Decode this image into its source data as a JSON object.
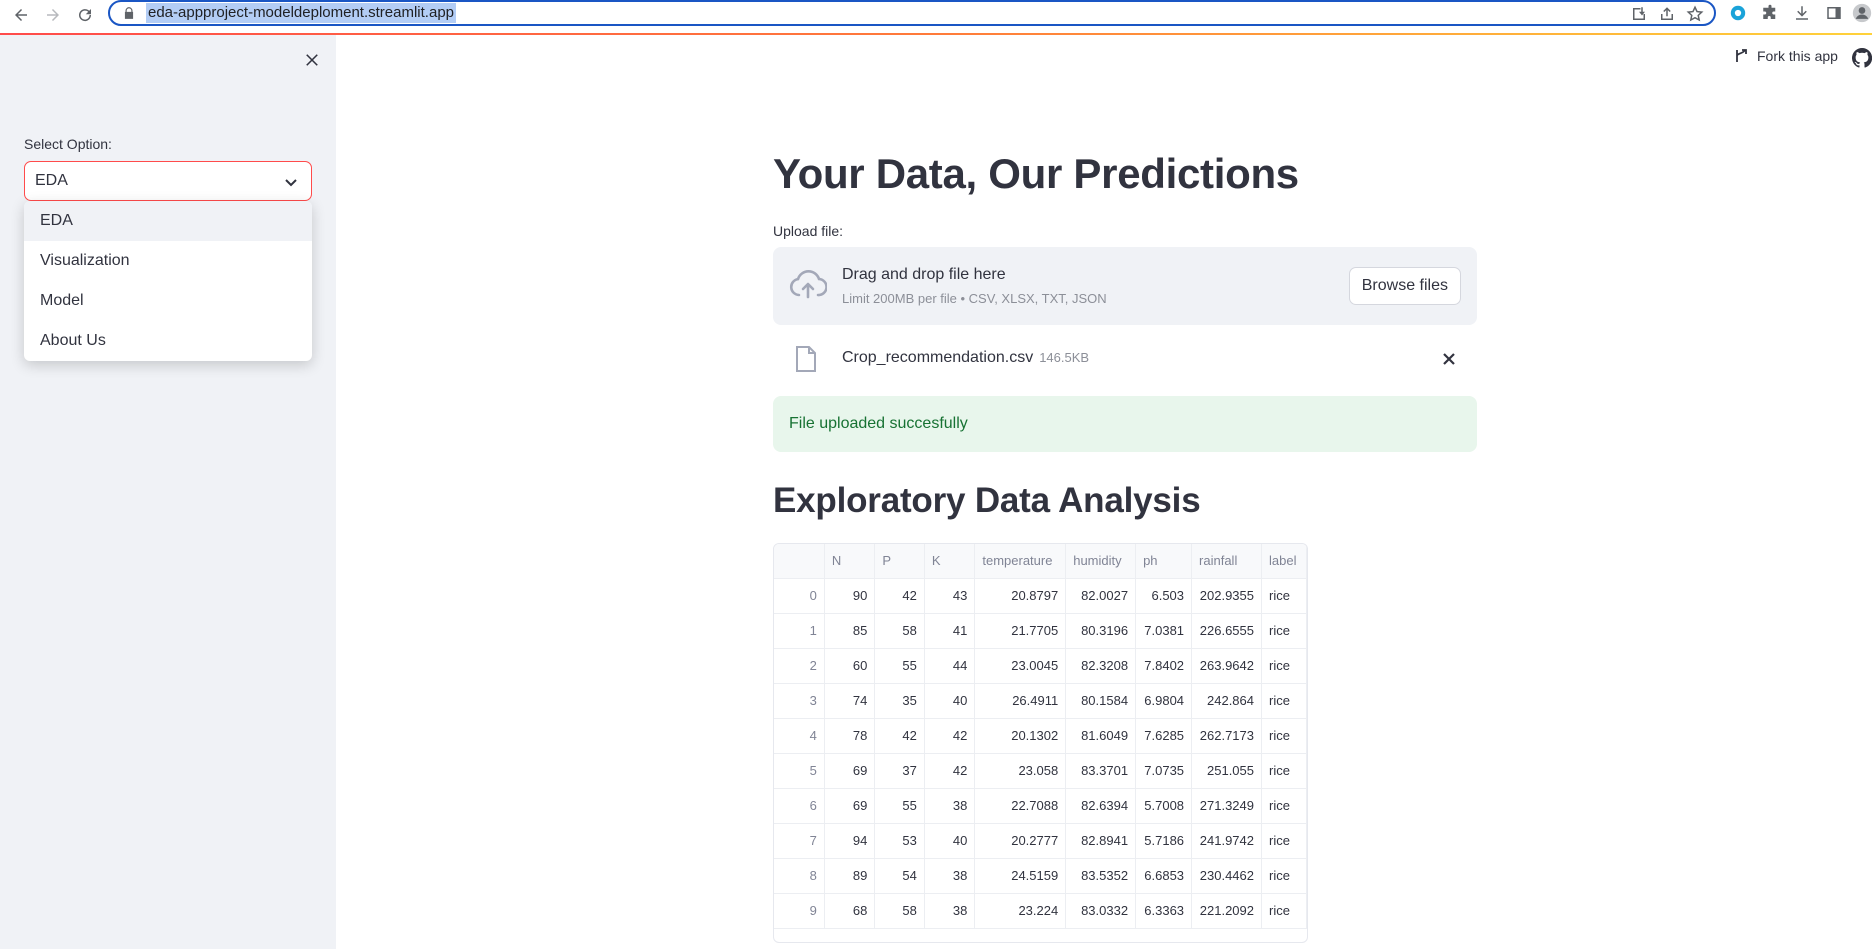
{
  "browser": {
    "url": "eda-appproject-modeldeploment.streamlit.app"
  },
  "sidebar": {
    "select_label": "Select Option:",
    "selected_value": "EDA",
    "options": [
      "EDA",
      "Visualization",
      "Model",
      "About Us"
    ]
  },
  "header": {
    "fork_label": "Fork this app"
  },
  "main": {
    "title": "Your Data, Our Predictions",
    "upload_label": "Upload file:",
    "dropzone_title": "Drag and drop file here",
    "dropzone_limit": "Limit 200MB per file • CSV, XLSX, TXT, JSON",
    "browse_label": "Browse files",
    "file_name": "Crop_recommendation.csv",
    "file_size": "146.5KB",
    "success_message": "File uploaded succesfully",
    "section_title": "Exploratory Data Analysis"
  },
  "table": {
    "columns": [
      "",
      "N",
      "P",
      "K",
      "temperature",
      "humidity",
      "ph",
      "rainfall",
      "label"
    ],
    "rows": [
      [
        "0",
        "90",
        "42",
        "43",
        "20.8797",
        "82.0027",
        "6.503",
        "202.9355",
        "rice"
      ],
      [
        "1",
        "85",
        "58",
        "41",
        "21.7705",
        "80.3196",
        "7.0381",
        "226.6555",
        "rice"
      ],
      [
        "2",
        "60",
        "55",
        "44",
        "23.0045",
        "82.3208",
        "7.8402",
        "263.9642",
        "rice"
      ],
      [
        "3",
        "74",
        "35",
        "40",
        "26.4911",
        "80.1584",
        "6.9804",
        "242.864",
        "rice"
      ],
      [
        "4",
        "78",
        "42",
        "42",
        "20.1302",
        "81.6049",
        "7.6285",
        "262.7173",
        "rice"
      ],
      [
        "5",
        "69",
        "37",
        "42",
        "23.058",
        "83.3701",
        "7.0735",
        "251.055",
        "rice"
      ],
      [
        "6",
        "69",
        "55",
        "38",
        "22.7088",
        "82.6394",
        "5.7008",
        "271.3249",
        "rice"
      ],
      [
        "7",
        "94",
        "53",
        "40",
        "20.2777",
        "82.8941",
        "5.7186",
        "241.9742",
        "rice"
      ],
      [
        "8",
        "89",
        "54",
        "38",
        "24.5159",
        "83.5352",
        "6.6853",
        "230.4462",
        "rice"
      ],
      [
        "9",
        "68",
        "58",
        "38",
        "23.224",
        "83.0332",
        "6.3363",
        "221.2092",
        "rice"
      ]
    ]
  },
  "colors": {
    "accent": "#ff4b4b",
    "sidebar_bg": "#f0f2f6",
    "success_bg": "#e8f6ec",
    "success_text": "#177233"
  }
}
